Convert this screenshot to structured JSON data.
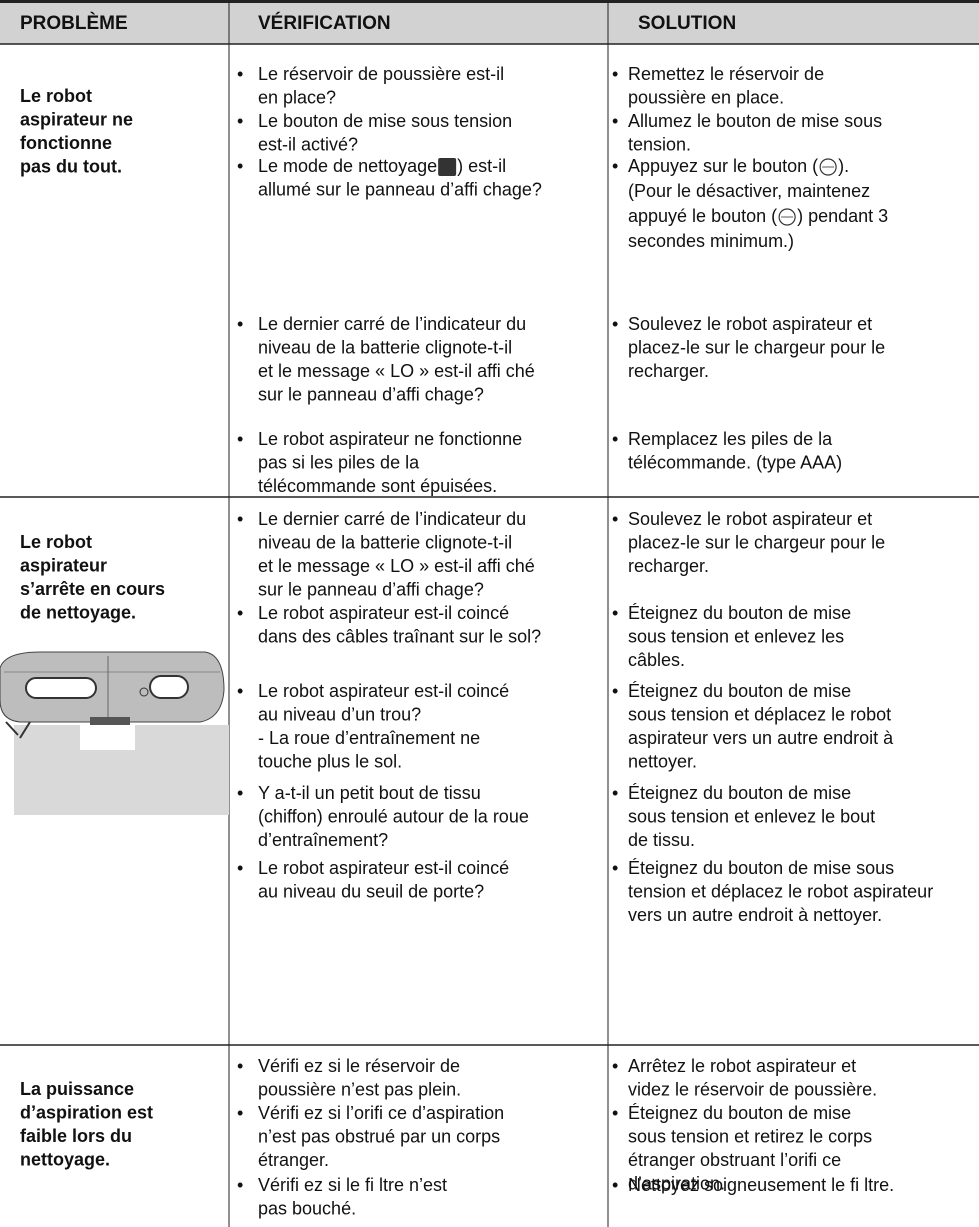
{
  "header": [
    "PROBLÈME",
    "VÉRIFICATION",
    "SOLUTION"
  ],
  "rows": [
    {
      "problem": [
        "Le robot",
        "aspirateur ne",
        "fonctionne",
        "pas du tout."
      ],
      "items": [
        {
          "check": [
            "Le réservoir de poussière est-il",
            "en place?"
          ],
          "solution": [
            "Remettez le réservoir de",
            "poussière en place."
          ]
        },
        {
          "check": [
            "Le bouton de mise sous tension",
            "est-il activé?"
          ],
          "solution": [
            "Allumez le bouton de mise sous",
            "tension."
          ]
        },
        {
          "check": [
            [
              "Le mode de nettoyage",
              ") est-il"
            ],
            "allumé sur le panneau d’affi chage?"
          ],
          "solution": [
            [
              "Appuyez sur le bouton (",
              ")."
            ],
            "(Pour le désactiver, maintenez",
            [
              "appuyé le bouton (",
              ") pendant 3"
            ],
            "secondes minimum.)"
          ]
        },
        {
          "check": [
            "Le dernier carré de l’indicateur du",
            "niveau de la batterie clignote-t-il",
            "et le message « LO » est-il affi ché",
            "sur le panneau d’affi chage?"
          ],
          "solution": [
            "Soulevez le robot aspirateur et",
            "placez-le sur le chargeur pour le",
            "recharger."
          ]
        },
        {
          "check": [
            "Le robot aspirateur ne fonctionne",
            "pas si les piles de la",
            "télécommande sont épuisées."
          ],
          "solution": [
            "Remplacez les piles de la",
            "télécommande. (type AAA)"
          ]
        }
      ]
    },
    {
      "problem": [
        "Le robot",
        "aspirateur",
        "s’arrête en cours",
        "de nettoyage."
      ],
      "items": [
        {
          "check": [
            "Le dernier carré de l’indicateur du",
            "niveau de la batterie clignote-t-il",
            "et le message « LO » est-il affi ché",
            "sur le panneau d’affi chage?"
          ],
          "solution": [
            "Soulevez le robot aspirateur et",
            "placez-le sur le chargeur pour le",
            "recharger."
          ]
        },
        {
          "check": [
            "Le robot aspirateur est-il coincé",
            "dans des câbles traînant sur le sol?"
          ],
          "solution": [
            "Éteignez du bouton de mise",
            "sous tension et enlevez les",
            "câbles."
          ]
        },
        {
          "check": [
            "Le robot aspirateur est-il coincé",
            "au niveau d’un trou?",
            "- La roue d’entraînement ne",
            "touche plus le sol."
          ],
          "solution": [
            "Éteignez du bouton de mise",
            "sous tension et déplacez le robot",
            "aspirateur vers un autre endroit à",
            "nettoyer."
          ]
        },
        {
          "check": [
            "Y a-t-il un petit bout de tissu",
            "(chiffon) enroulé autour de la roue",
            "d’entraînement?"
          ],
          "solution": [
            "Éteignez du bouton de mise",
            "sous tension et enlevez le bout",
            "de tissu."
          ]
        },
        {
          "check": [
            "Le robot aspirateur est-il coincé",
            "au niveau du seuil de porte?"
          ],
          "solution": [
            "Éteignez du bouton de mise sous",
            "tension et déplacez le robot aspirateur",
            "vers un autre endroit à nettoyer."
          ]
        }
      ]
    },
    {
      "problem": [
        "La puissance",
        "d’aspiration est",
        "faible lors du",
        "nettoyage."
      ],
      "items": [
        {
          "check": [
            "Vérifi ez si le réservoir de",
            "poussière n’est pas plein."
          ],
          "solution": [
            "Arrêtez le robot aspirateur et",
            "videz le réservoir de poussière."
          ]
        },
        {
          "check": [
            "Vérifi ez si l’orifi ce d’aspiration",
            "n’est pas obstrué par un corps",
            "étranger."
          ],
          "solution": [
            "Éteignez du bouton de mise",
            "sous tension et retirez le corps",
            "étranger obstruant l’orifi ce",
            "d’aspiration."
          ]
        },
        {
          "check": [
            "Vérifi ez si le fi ltre n’est",
            "pas bouché."
          ],
          "solution": [
            "Nettoyez soigneusement le fi ltre."
          ]
        }
      ]
    }
  ]
}
